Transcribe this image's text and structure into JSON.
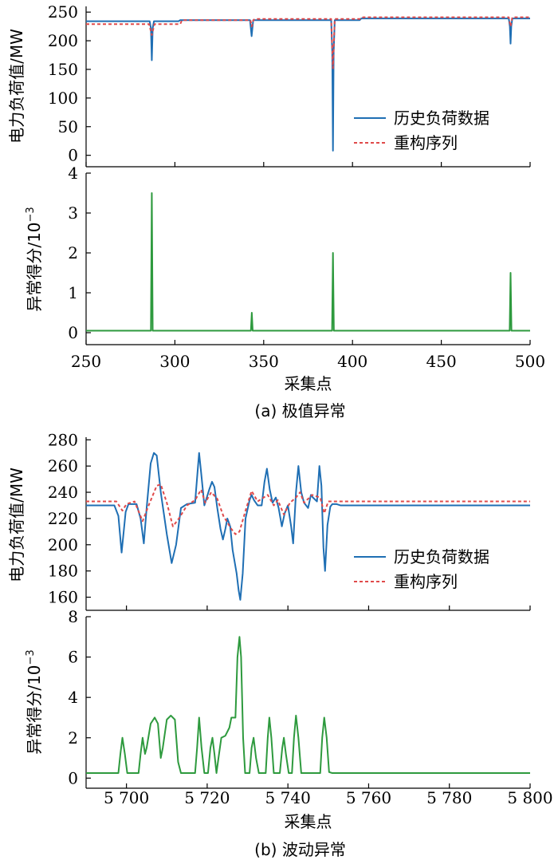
{
  "chart_data": [
    {
      "type": "line",
      "panel": "a-top",
      "ylabel": "电力负荷值/MW",
      "ylim": [
        -20,
        260
      ],
      "xlim": [
        250,
        500
      ],
      "yticks": [
        "0",
        "50",
        "100",
        "150",
        "200",
        "250"
      ],
      "legend": {
        "placement": "right",
        "entries": [
          "历史负荷数据",
          "重构序列"
        ]
      },
      "series": [
        {
          "name": "历史负荷数据",
          "color": "#1f6fb4",
          "points": [
            [
              250,
              234
            ],
            [
              285.8,
              234
            ],
            [
              286.5,
              222
            ],
            [
              287,
              166
            ],
            [
              287.5,
              222
            ],
            [
              288.2,
              234
            ],
            [
              302,
              234
            ],
            [
              303,
              236
            ],
            [
              342.3,
              236
            ],
            [
              343.2,
              208
            ],
            [
              344.1,
              236
            ],
            [
              388,
              236
            ],
            [
              388.6,
              180
            ],
            [
              389,
              8
            ],
            [
              389.4,
              180
            ],
            [
              390,
              236
            ],
            [
              404,
              236
            ],
            [
              405,
              239
            ],
            [
              488,
              239
            ],
            [
              488.6,
              225
            ],
            [
              489,
              195
            ],
            [
              489.4,
              225
            ],
            [
              490,
              239
            ],
            [
              500,
              239
            ]
          ]
        },
        {
          "name": "重构序列",
          "color": "#e04a4a",
          "points": [
            [
              250,
              229
            ],
            [
              285.5,
              229
            ],
            [
              287,
              210
            ],
            [
              288.5,
              229
            ],
            [
              303,
              229
            ],
            [
              304,
              236
            ],
            [
              342.5,
              236
            ],
            [
              343.3,
              225
            ],
            [
              344.2,
              236
            ],
            [
              345,
              238
            ],
            [
              388,
              238
            ],
            [
              389,
              152
            ],
            [
              390,
              238
            ],
            [
              405,
              238
            ],
            [
              406,
              241
            ],
            [
              488,
              241
            ],
            [
              489,
              225
            ],
            [
              490,
              241
            ],
            [
              500,
              241
            ]
          ]
        }
      ]
    },
    {
      "type": "line",
      "panel": "a-bottom",
      "ylabel": "异常得分/10",
      "ylabel_exp": "−3",
      "ylim": [
        -0.3,
        4
      ],
      "xlim": [
        250,
        500
      ],
      "yticks": [
        "0",
        "1",
        "2",
        "3",
        "4"
      ],
      "xticks": [
        "250",
        "300",
        "350",
        "400",
        "450",
        "500"
      ],
      "xlabel": "采集点",
      "caption": "(a)  极值异常",
      "series": [
        {
          "color": "#2e9a3e",
          "points": [
            [
              250,
              0.05
            ],
            [
              286.5,
              0.05
            ],
            [
              287,
              3.5
            ],
            [
              287.5,
              0.05
            ],
            [
              342.8,
              0.05
            ],
            [
              343.3,
              0.5
            ],
            [
              343.8,
              0.05
            ],
            [
              388.5,
              0.05
            ],
            [
              389,
              2.0
            ],
            [
              389.5,
              0.05
            ],
            [
              488.5,
              0.05
            ],
            [
              489,
              1.5
            ],
            [
              489.5,
              0.05
            ],
            [
              500,
              0.05
            ]
          ]
        }
      ]
    },
    {
      "type": "line",
      "panel": "b-top",
      "ylabel": "电力负荷值/MW",
      "ylim": [
        150,
        282
      ],
      "xlim": [
        5690,
        5800
      ],
      "yticks": [
        "160",
        "180",
        "200",
        "220",
        "240",
        "260",
        "280"
      ],
      "legend": {
        "placement": "right",
        "entries": [
          "历史负荷数据",
          "重构序列"
        ]
      },
      "series": [
        {
          "name": "历史负荷数据",
          "color": "#1f6fb4",
          "points": [
            [
              5690,
              230
            ],
            [
              5697,
              230
            ],
            [
              5698,
              222
            ],
            [
              5698.8,
              194
            ],
            [
              5699.8,
              225
            ],
            [
              5700.5,
              231
            ],
            [
              5702.5,
              231
            ],
            [
              5703.5,
              220
            ],
            [
              5704.3,
              201
            ],
            [
              5705,
              228
            ],
            [
              5706,
              262
            ],
            [
              5706.8,
              270
            ],
            [
              5707.5,
              268
            ],
            [
              5708.5,
              240
            ],
            [
              5710,
              208
            ],
            [
              5711.2,
              186
            ],
            [
              5712.3,
              200
            ],
            [
              5713.5,
              228
            ],
            [
              5715,
              231
            ],
            [
              5717,
              232
            ],
            [
              5717.6,
              255
            ],
            [
              5718,
              270
            ],
            [
              5718.5,
              255
            ],
            [
              5719.3,
              230
            ],
            [
              5720.5,
              242
            ],
            [
              5721.2,
              248
            ],
            [
              5721.8,
              244
            ],
            [
              5722.5,
              228
            ],
            [
              5723.3,
              212
            ],
            [
              5723.9,
              204
            ],
            [
              5724.5,
              212
            ],
            [
              5725,
              220
            ],
            [
              5725.7,
              214
            ],
            [
              5726.3,
              196
            ],
            [
              5727.3,
              178
            ],
            [
              5727.8,
              165
            ],
            [
              5728.2,
              158
            ],
            [
              5728.8,
              178
            ],
            [
              5729.5,
              220
            ],
            [
              5730.5,
              234
            ],
            [
              5731,
              238
            ],
            [
              5731.6,
              234
            ],
            [
              5732.5,
              230
            ],
            [
              5733.5,
              230
            ],
            [
              5734.2,
              248
            ],
            [
              5734.8,
              258
            ],
            [
              5735.5,
              242
            ],
            [
              5736.2,
              232
            ],
            [
              5737,
              236
            ],
            [
              5737.7,
              228
            ],
            [
              5738.5,
              214
            ],
            [
              5739.2,
              224
            ],
            [
              5740,
              230
            ],
            [
              5740.8,
              214
            ],
            [
              5741.3,
              201
            ],
            [
              5742,
              240
            ],
            [
              5742.6,
              260
            ],
            [
              5743.3,
              240
            ],
            [
              5744,
              232
            ],
            [
              5745,
              228
            ],
            [
              5745.7,
              238
            ],
            [
              5746.2,
              236
            ],
            [
              5747.2,
              233
            ],
            [
              5747.8,
              260
            ],
            [
              5748.3,
              245
            ],
            [
              5748.8,
              198
            ],
            [
              5749.2,
              180
            ],
            [
              5749.8,
              215
            ],
            [
              5750.5,
              229
            ],
            [
              5751,
              231
            ],
            [
              5752,
              231
            ],
            [
              5753,
              230
            ],
            [
              5800,
              230
            ]
          ]
        },
        {
          "name": "重构序列",
          "color": "#e04a4a",
          "points": [
            [
              5690,
              233
            ],
            [
              5697.5,
              233
            ],
            [
              5699,
              226
            ],
            [
              5700,
              231
            ],
            [
              5702,
              233
            ],
            [
              5704,
              218
            ],
            [
              5705.5,
              230
            ],
            [
              5707.5,
              245
            ],
            [
              5708.5,
              246
            ],
            [
              5710,
              232
            ],
            [
              5711.5,
              214
            ],
            [
              5713,
              220
            ],
            [
              5715,
              230
            ],
            [
              5717,
              234
            ],
            [
              5718.5,
              242
            ],
            [
              5719.5,
              232
            ],
            [
              5721,
              240
            ],
            [
              5722.5,
              235
            ],
            [
              5724,
              222
            ],
            [
              5726,
              212
            ],
            [
              5727,
              208
            ],
            [
              5728,
              210
            ],
            [
              5729.5,
              226
            ],
            [
              5731,
              241
            ],
            [
              5732.5,
              233
            ],
            [
              5735,
              238
            ],
            [
              5736.5,
              230
            ],
            [
              5737.5,
              234
            ],
            [
              5739,
              223
            ],
            [
              5740.5,
              232
            ],
            [
              5742,
              236
            ],
            [
              5743,
              240
            ],
            [
              5744,
              232
            ],
            [
              5746,
              238
            ],
            [
              5748,
              236
            ],
            [
              5749,
              224
            ],
            [
              5750,
              233
            ],
            [
              5800,
              233
            ]
          ]
        }
      ]
    },
    {
      "type": "line",
      "panel": "b-bottom",
      "ylabel": "异常得分/10",
      "ylabel_exp": "−3",
      "ylim": [
        -0.5,
        8
      ],
      "xlim": [
        5690,
        5800
      ],
      "yticks": [
        "0",
        "2",
        "4",
        "6",
        "8"
      ],
      "xticks": [
        "5 700",
        "5 720",
        "5 740",
        "5 760",
        "5 780",
        "5 800"
      ],
      "xlabel": "采集点",
      "caption": "(b)  波动异常",
      "series": [
        {
          "color": "#2e9a3e",
          "points": [
            [
              5690,
              0.25
            ],
            [
              5698,
              0.25
            ],
            [
              5698.5,
              1.2
            ],
            [
              5699,
              2.0
            ],
            [
              5699.6,
              1.2
            ],
            [
              5700.2,
              0.25
            ],
            [
              5703,
              0.25
            ],
            [
              5703.5,
              1.2
            ],
            [
              5704,
              2.0
            ],
            [
              5704.6,
              1.2
            ],
            [
              5705,
              1.5
            ],
            [
              5706,
              2.7
            ],
            [
              5707,
              3.0
            ],
            [
              5707.8,
              2.7
            ],
            [
              5708.5,
              1.0
            ],
            [
              5709,
              1.5
            ],
            [
              5710,
              2.9
            ],
            [
              5711,
              3.1
            ],
            [
              5712,
              2.9
            ],
            [
              5712.8,
              0.8
            ],
            [
              5713.5,
              0.25
            ],
            [
              5717,
              0.25
            ],
            [
              5717.5,
              1.5
            ],
            [
              5718,
              3.0
            ],
            [
              5718.6,
              1.5
            ],
            [
              5719.3,
              0.25
            ],
            [
              5720.2,
              0.25
            ],
            [
              5720.8,
              1.5
            ],
            [
              5721.3,
              2.0
            ],
            [
              5721.8,
              1.2
            ],
            [
              5722.3,
              0.25
            ],
            [
              5722.8,
              1.0
            ],
            [
              5723.5,
              2.0
            ],
            [
              5724.5,
              2.1
            ],
            [
              5725.5,
              2.5
            ],
            [
              5726,
              3.0
            ],
            [
              5727,
              3.0
            ],
            [
              5727.5,
              6.0
            ],
            [
              5728,
              7.0
            ],
            [
              5728.4,
              6.0
            ],
            [
              5728.9,
              2.0
            ],
            [
              5729.4,
              0.25
            ],
            [
              5730.5,
              0.25
            ],
            [
              5731,
              1.5
            ],
            [
              5731.5,
              2.0
            ],
            [
              5732.1,
              1.0
            ],
            [
              5732.8,
              0.25
            ],
            [
              5734.5,
              0.25
            ],
            [
              5735,
              2.0
            ],
            [
              5735.4,
              3.0
            ],
            [
              5735.9,
              2.0
            ],
            [
              5736.5,
              0.25
            ],
            [
              5738,
              0.25
            ],
            [
              5738.6,
              1.5
            ],
            [
              5739,
              2.0
            ],
            [
              5739.5,
              1.2
            ],
            [
              5740.2,
              0.25
            ],
            [
              5741,
              0.25
            ],
            [
              5741.5,
              2.0
            ],
            [
              5742,
              3.1
            ],
            [
              5742.6,
              2.0
            ],
            [
              5743.3,
              0.25
            ],
            [
              5748,
              0.25
            ],
            [
              5748.5,
              2.0
            ],
            [
              5749,
              3.0
            ],
            [
              5749.6,
              2.0
            ],
            [
              5750.2,
              0.3
            ],
            [
              5751,
              0.25
            ],
            [
              5800,
              0.25
            ]
          ]
        }
      ]
    }
  ]
}
